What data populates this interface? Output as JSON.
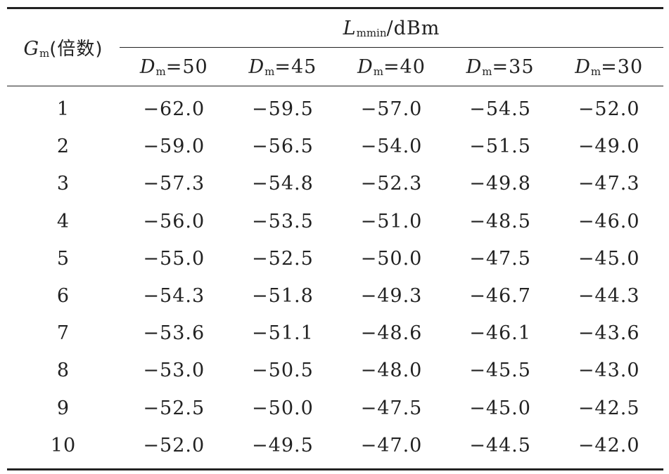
{
  "table": {
    "row_header": {
      "symbol": "G",
      "subscript": "m",
      "note": "(倍数)"
    },
    "group_header": {
      "symbol": "L",
      "subscript": "mmin",
      "unit": "/dBm"
    },
    "columns": [
      {
        "symbol": "D",
        "subscript": "m",
        "value": "=50"
      },
      {
        "symbol": "D",
        "subscript": "m",
        "value": "=45"
      },
      {
        "symbol": "D",
        "subscript": "m",
        "value": "=40"
      },
      {
        "symbol": "D",
        "subscript": "m",
        "value": "=35"
      },
      {
        "symbol": "D",
        "subscript": "m",
        "value": "=30"
      }
    ],
    "rows": [
      {
        "gm": "1",
        "values": [
          "−62.0",
          "−59.5",
          "−57.0",
          "−54.5",
          "−52.0"
        ]
      },
      {
        "gm": "2",
        "values": [
          "−59.0",
          "−56.5",
          "−54.0",
          "−51.5",
          "−49.0"
        ]
      },
      {
        "gm": "3",
        "values": [
          "−57.3",
          "−54.8",
          "−52.3",
          "−49.8",
          "−47.3"
        ]
      },
      {
        "gm": "4",
        "values": [
          "−56.0",
          "−53.5",
          "−51.0",
          "−48.5",
          "−46.0"
        ]
      },
      {
        "gm": "5",
        "values": [
          "−55.0",
          "−52.5",
          "−50.0",
          "−47.5",
          "−45.0"
        ]
      },
      {
        "gm": "6",
        "values": [
          "−54.3",
          "−51.8",
          "−49.3",
          "−46.7",
          "−44.3"
        ]
      },
      {
        "gm": "7",
        "values": [
          "−53.6",
          "−51.1",
          "−48.6",
          "−46.1",
          "−43.6"
        ]
      },
      {
        "gm": "8",
        "values": [
          "−53.0",
          "−50.5",
          "−48.0",
          "−45.5",
          "−43.0"
        ]
      },
      {
        "gm": "9",
        "values": [
          "−52.5",
          "−50.0",
          "−47.5",
          "−45.0",
          "−42.5"
        ]
      },
      {
        "gm": "10",
        "values": [
          "−52.0",
          "−49.5",
          "−47.0",
          "−44.5",
          "−42.0"
        ]
      }
    ]
  }
}
